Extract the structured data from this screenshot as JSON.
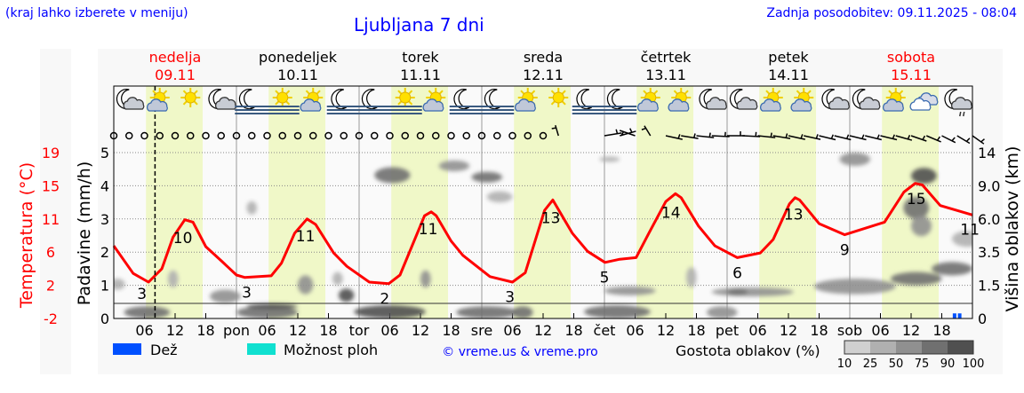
{
  "header": {
    "hint": "(kraj lahko izberete v meniju)",
    "title": "Ljubljana 7 dni",
    "updated": "Zadnja posodobitev: 09.11.2025 - 08:04"
  },
  "colors": {
    "link": "#0000ff",
    "temperature": "#ff0000",
    "daylight": "#f0f8c8",
    "rain": "#0050ff",
    "showers": "#10e0d0"
  },
  "chart_data": {
    "type": "meteogram",
    "hours_range": [
      0,
      168
    ],
    "now_hour": 8.07,
    "days": [
      {
        "name": "nedelja",
        "date": "09.11",
        "abbr": "",
        "weekend": true
      },
      {
        "name": "ponedeljek",
        "date": "10.11",
        "abbr": "pon",
        "weekend": false
      },
      {
        "name": "torek",
        "date": "11.11",
        "abbr": "tor",
        "weekend": false
      },
      {
        "name": "sreda",
        "date": "12.11",
        "abbr": "sre",
        "weekend": false
      },
      {
        "name": "četrtek",
        "date": "13.11",
        "abbr": "čet",
        "weekend": false
      },
      {
        "name": "petek",
        "date": "14.11",
        "abbr": "pet",
        "weekend": false
      },
      {
        "name": "sobota",
        "date": "15.11",
        "abbr": "sob",
        "weekend": true
      }
    ],
    "hour_ticks": [
      "06",
      "12",
      "18"
    ],
    "daylight_hours": [
      6.3,
      17.4
    ],
    "left_axis_temp": {
      "label": "Temperatura (°C)",
      "ticks": [
        "-2",
        "2",
        "6",
        "11",
        "15",
        "19"
      ]
    },
    "left_axis_precip": {
      "label": "Padavine (mm/h)",
      "ticks": [
        "0",
        "1",
        "2",
        "3",
        "4",
        "5"
      ],
      "range": [
        0,
        5
      ]
    },
    "right_axis_cloud": {
      "label": "Višina oblakov (km)",
      "ticks": [
        "0",
        "1.5",
        "3.5",
        "6.0",
        "9.0",
        "14"
      ]
    },
    "temp_range": [
      -2,
      19
    ],
    "temperature": [
      [
        0,
        7.2
      ],
      [
        3.8,
        3.7
      ],
      [
        6.8,
        2.6
      ],
      [
        9.4,
        4.3
      ],
      [
        11.6,
        8.3
      ],
      [
        13.9,
        10.5
      ],
      [
        15.5,
        10.2
      ],
      [
        18,
        7.1
      ],
      [
        21.2,
        5.2
      ],
      [
        24,
        3.5
      ],
      [
        25.6,
        3.2
      ],
      [
        30.8,
        3.4
      ],
      [
        32.8,
        5.0
      ],
      [
        35.4,
        8.8
      ],
      [
        37.8,
        10.6
      ],
      [
        39.5,
        9.9
      ],
      [
        43,
        6.3
      ],
      [
        45.6,
        4.6
      ],
      [
        50,
        2.6
      ],
      [
        53.8,
        2.4
      ],
      [
        56,
        3.5
      ],
      [
        60.8,
        11.0
      ],
      [
        62.1,
        11.5
      ],
      [
        63.1,
        11.0
      ],
      [
        66,
        7.8
      ],
      [
        68.3,
        6.0
      ],
      [
        73.6,
        3.3
      ],
      [
        78,
        2.6
      ],
      [
        80.5,
        3.8
      ],
      [
        84.3,
        11.7
      ],
      [
        85.9,
        13.0
      ],
      [
        89.7,
        8.8
      ],
      [
        92.7,
        6.5
      ],
      [
        96.1,
        5.1
      ],
      [
        99,
        5.5
      ],
      [
        102.2,
        5.7
      ],
      [
        104.7,
        8.8
      ],
      [
        108,
        12.8
      ],
      [
        109.9,
        13.8
      ],
      [
        111,
        13.3
      ],
      [
        114.4,
        9.7
      ],
      [
        117.6,
        7.2
      ],
      [
        122,
        5.7
      ],
      [
        126.5,
        6.3
      ],
      [
        129,
        8.0
      ],
      [
        132.2,
        12.5
      ],
      [
        133.3,
        13.3
      ],
      [
        134.2,
        13.0
      ],
      [
        138,
        10.0
      ],
      [
        143,
        8.6
      ],
      [
        150.8,
        10.2
      ],
      [
        154.6,
        14.0
      ],
      [
        156.8,
        15.1
      ],
      [
        158.2,
        14.9
      ],
      [
        161.7,
        12.3
      ],
      [
        168,
        11.1
      ]
    ],
    "temp_labels": [
      [
        5.5,
        "3"
      ],
      [
        13.5,
        "10"
      ],
      [
        26,
        "3"
      ],
      [
        37.5,
        "11"
      ],
      [
        53,
        "2"
      ],
      [
        61.5,
        "11"
      ],
      [
        77.5,
        "3"
      ],
      [
        85.5,
        "13"
      ],
      [
        96,
        "5"
      ],
      [
        109,
        "14"
      ],
      [
        122,
        "6"
      ],
      [
        133,
        "13"
      ],
      [
        143,
        "9"
      ],
      [
        157,
        "15"
      ],
      [
        167.5,
        "11"
      ]
    ],
    "precipitation": [
      {
        "hour": 164.5,
        "mm": 0.1,
        "type": "rain"
      },
      {
        "hour": 165.5,
        "mm": 0.1,
        "type": "rain"
      }
    ],
    "weather_icons": [
      [
        3,
        "moon-cloud"
      ],
      [
        9,
        "sun-cloud"
      ],
      [
        15,
        "sun"
      ],
      [
        21,
        "moon-cloud"
      ],
      [
        27,
        "moon-fog"
      ],
      [
        33,
        "sun-fog"
      ],
      [
        39,
        "sun-cloud"
      ],
      [
        45,
        "moon-fog"
      ],
      [
        51,
        "moon-fog"
      ],
      [
        57,
        "sun-fog"
      ],
      [
        63,
        "sun-cloud"
      ],
      [
        69,
        "moon-fog"
      ],
      [
        75,
        "moon-fog"
      ],
      [
        81,
        "sun-cloud"
      ],
      [
        87,
        "sun"
      ],
      [
        93,
        "moon-fog"
      ],
      [
        99,
        "moon-fog"
      ],
      [
        105,
        "sun-cloud"
      ],
      [
        111,
        "sun-cloud"
      ],
      [
        117,
        "moon-cloud"
      ],
      [
        123,
        "moon-cloud"
      ],
      [
        129,
        "sun-cloud"
      ],
      [
        135,
        "sun-cloud"
      ],
      [
        141,
        "moon-cloud"
      ],
      [
        147,
        "moon-cloud"
      ],
      [
        153,
        "sun-cloud"
      ],
      [
        159,
        "cloud"
      ],
      [
        165,
        "moon-cloud-rain"
      ]
    ],
    "wind_calm_until_hour": 84,
    "wind": [
      [
        87,
        350,
        5
      ],
      [
        96,
        75,
        5
      ],
      [
        99,
        65,
        5
      ],
      [
        102,
        300,
        5
      ],
      [
        105,
        340,
        5
      ],
      [
        108,
        110,
        5
      ],
      [
        111,
        105,
        5
      ],
      [
        114,
        100,
        5
      ],
      [
        117,
        95,
        5
      ],
      [
        120,
        90,
        5
      ],
      [
        123,
        95,
        5
      ],
      [
        126,
        100,
        5
      ],
      [
        129,
        105,
        5
      ],
      [
        132,
        110,
        5
      ],
      [
        135,
        110,
        5
      ],
      [
        138,
        112,
        5
      ],
      [
        141,
        112,
        5
      ],
      [
        144,
        112,
        5
      ],
      [
        147,
        112,
        5
      ],
      [
        150,
        112,
        5
      ],
      [
        153,
        115,
        5
      ],
      [
        156,
        120,
        5
      ],
      [
        159,
        125,
        5
      ],
      [
        162,
        130,
        5
      ],
      [
        165,
        135,
        5
      ],
      [
        168,
        140,
        5
      ]
    ],
    "cloud_cover": [
      {
        "hour": 0.7,
        "km": 1.6,
        "dh": 1.5,
        "dkm": 0.3,
        "density": 25
      },
      {
        "hour": 6.5,
        "km": 0.25,
        "dh": 4.5,
        "dkm": 0.3,
        "density": 75
      },
      {
        "hour": 11.6,
        "km": 1.9,
        "dh": 1,
        "dkm": 0.5,
        "density": 25
      },
      {
        "hour": 27,
        "km": 7,
        "dh": 1,
        "dkm": 0.6,
        "density": 25
      },
      {
        "hour": 21.8,
        "km": 1.0,
        "dh": 3,
        "dkm": 0.3,
        "density": 50
      },
      {
        "hour": 30,
        "km": 0.25,
        "dh": 6,
        "dkm": 0.3,
        "density": 75
      },
      {
        "hour": 31,
        "km": 0.55,
        "dh": 5,
        "dkm": 0.12,
        "density": 90
      },
      {
        "hour": 37.5,
        "km": 1.6,
        "dh": 1.5,
        "dkm": 0.5,
        "density": 50
      },
      {
        "hour": 43.8,
        "km": 1.9,
        "dh": 1,
        "dkm": 0.4,
        "density": 25
      },
      {
        "hour": 45.5,
        "km": 1.05,
        "dh": 1.5,
        "dkm": 0.3,
        "density": 90
      },
      {
        "hour": 54.5,
        "km": 10.6,
        "dh": 3.5,
        "dkm": 1.2,
        "density": 75
      },
      {
        "hour": 66.6,
        "km": 12,
        "dh": 3,
        "dkm": 0.8,
        "density": 50
      },
      {
        "hour": 73,
        "km": 10.3,
        "dh": 3,
        "dkm": 0.8,
        "density": 75
      },
      {
        "hour": 75.5,
        "km": 8,
        "dh": 2.5,
        "dkm": 0.5,
        "density": 25
      },
      {
        "hour": 61,
        "km": 1.9,
        "dh": 1,
        "dkm": 0.5,
        "density": 50
      },
      {
        "hour": 54,
        "km": 0.3,
        "dh": 7,
        "dkm": 0.3,
        "density": 90
      },
      {
        "hour": 73,
        "km": 0.25,
        "dh": 6,
        "dkm": 0.3,
        "density": 75
      },
      {
        "hour": 80,
        "km": 0.25,
        "dh": 2,
        "dkm": 0.3,
        "density": 75
      },
      {
        "hour": 98.5,
        "km": 0.3,
        "dh": 6.5,
        "dkm": 0.3,
        "density": 75
      },
      {
        "hour": 119,
        "km": 0.25,
        "dh": 3,
        "dkm": 0.3,
        "density": 50
      },
      {
        "hour": 97,
        "km": 13,
        "dh": 2,
        "dkm": 0.3,
        "density": 25
      },
      {
        "hour": 145,
        "km": 13,
        "dh": 3,
        "dkm": 1.0,
        "density": 50
      },
      {
        "hour": 101,
        "km": 1.25,
        "dh": 5,
        "dkm": 0.2,
        "density": 50
      },
      {
        "hour": 113,
        "km": 2.0,
        "dh": 1,
        "dkm": 0.6,
        "density": 25
      },
      {
        "hour": 125,
        "km": 1.2,
        "dh": 8,
        "dkm": 0.2,
        "density": 50
      },
      {
        "hour": 122,
        "km": 1.2,
        "dh": 2,
        "dkm": 0.15,
        "density": 75
      },
      {
        "hour": 145,
        "km": 1.5,
        "dh": 8,
        "dkm": 0.4,
        "density": 50
      },
      {
        "hour": 157,
        "km": 1.9,
        "dh": 5,
        "dkm": 0.4,
        "density": 75
      },
      {
        "hour": 164,
        "km": 2.5,
        "dh": 4,
        "dkm": 0.4,
        "density": 75
      },
      {
        "hour": 158.5,
        "km": 10.5,
        "dh": 2.5,
        "dkm": 1.2,
        "density": 90
      },
      {
        "hour": 157,
        "km": 7,
        "dh": 2.5,
        "dkm": 1.0,
        "density": 75
      },
      {
        "hour": 158,
        "km": 5.5,
        "dh": 2,
        "dkm": 0.8,
        "density": 50
      },
      {
        "hour": 167,
        "km": 4.5,
        "dh": 3,
        "dkm": 0.6,
        "density": 25
      }
    ]
  },
  "legend": {
    "rain": "Dež",
    "showers": "Možnost ploh",
    "copyright": "© vreme.us & vreme.pro",
    "cloud_density": "Gostota oblakov (%)",
    "density_steps": [
      {
        "label": "10",
        "color": "#d0d0d0"
      },
      {
        "label": "25",
        "color": "#b0b0b0"
      },
      {
        "label": "50",
        "color": "#909090"
      },
      {
        "label": "75",
        "color": "#707070"
      },
      {
        "label": "90",
        "color": "#505050"
      },
      {
        "label": "100",
        "color": "#505050"
      }
    ]
  }
}
